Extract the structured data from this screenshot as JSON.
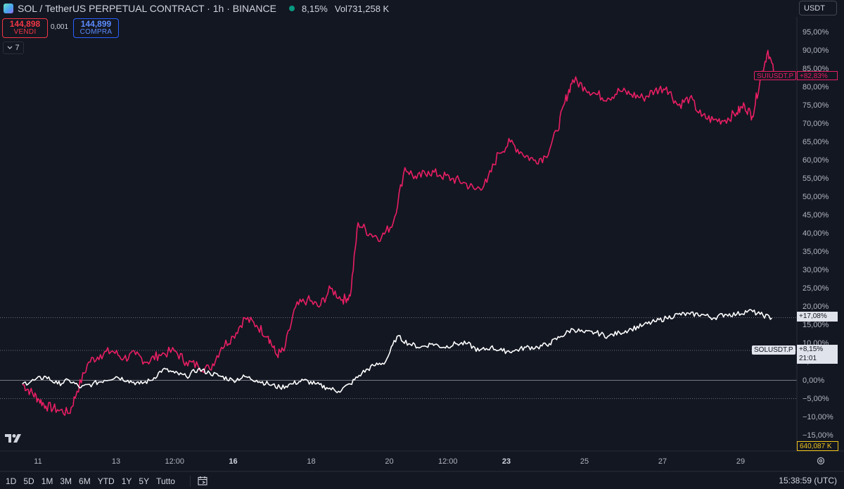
{
  "header": {
    "title": "SOL / TetherUS PERPETUAL CONTRACT · 1h · BINANCE",
    "change": "8,15%",
    "volume": "Vol731,258 K"
  },
  "trade": {
    "sell_price": "144,898",
    "sell_label": "VENDI",
    "spread": "0,001",
    "buy_price": "144,899",
    "buy_label": "COMPRA"
  },
  "indicators_toggle": "7",
  "currency": "USDT",
  "y_ticks": [
    "95,00%",
    "90,00%",
    "85,00%",
    "80,00%",
    "75,00%",
    "70,00%",
    "65,00%",
    "60,00%",
    "55,00%",
    "50,00%",
    "45,00%",
    "40,00%",
    "35,00%",
    "30,00%",
    "25,00%",
    "20,00%",
    "15,00%",
    "10,00%",
    "5,00%",
    "0,00%",
    "−5,00%",
    "−10,00%",
    "−15,00%"
  ],
  "x_ticks": [
    {
      "label": "11",
      "bold": false
    },
    {
      "label": "13",
      "bold": false
    },
    {
      "label": "12:00",
      "bold": false
    },
    {
      "label": "16",
      "bold": true
    },
    {
      "label": "18",
      "bold": false
    },
    {
      "label": "20",
      "bold": false
    },
    {
      "label": "12:00",
      "bold": false
    },
    {
      "label": "23",
      "bold": true
    },
    {
      "label": "25",
      "bold": false
    },
    {
      "label": "27",
      "bold": false
    },
    {
      "label": "29",
      "bold": false
    }
  ],
  "labels": {
    "sui_symbol": "SUIUSDT.P",
    "sui_value": "+82,83%",
    "sol_symbol": "SOLUSDT.P",
    "sol_value": "+8,15%",
    "sol_countdown": "21:01",
    "white_value": "+17,08%",
    "volume_value": "640,087 K"
  },
  "footer": {
    "ranges": [
      "1D",
      "5D",
      "1M",
      "3M",
      "6M",
      "YTD",
      "1Y",
      "5Y",
      "Tutto"
    ],
    "clock": "15:38:59 (UTC)"
  },
  "colors": {
    "background": "#131722",
    "sui_line": "#e91e63",
    "sol_line": "#ffffff"
  },
  "chart_data": {
    "type": "line",
    "y_unit": "%",
    "ylim": [
      -15,
      95
    ],
    "series": [
      {
        "name": "SUIUSDT.P",
        "color": "#e91e63",
        "x": [
          10.6,
          10.8,
          11.0,
          11.2,
          11.5,
          11.8,
          12.0,
          12.3,
          12.6,
          12.9,
          13.2,
          13.5,
          13.8,
          14.1,
          14.5,
          14.8,
          15.1,
          15.4,
          15.7,
          16.0,
          16.3,
          16.6,
          16.9,
          17.1,
          17.3,
          17.6,
          17.9,
          18.2,
          18.5,
          18.8,
          19.0,
          19.2,
          19.5,
          19.8,
          20.1,
          20.4,
          20.7,
          21.0,
          21.3,
          21.6,
          21.9,
          22.2,
          22.5,
          22.8,
          23.1,
          23.4,
          23.7,
          24.0,
          24.3,
          24.5,
          24.7,
          25.0,
          25.3,
          25.6,
          25.9,
          26.2,
          26.5,
          26.8,
          27.1,
          27.4,
          27.7,
          28.0,
          28.3,
          28.6,
          28.9,
          29.1,
          29.3,
          29.5,
          29.7,
          29.9
        ],
        "values": [
          -1,
          -3,
          -5,
          -7,
          -8,
          -9,
          -3,
          5,
          7,
          8,
          6,
          7,
          5,
          7,
          8,
          5,
          4,
          3,
          9,
          12,
          17,
          15,
          12,
          7,
          8,
          20,
          22,
          20,
          25,
          22,
          23,
          43,
          40,
          39,
          43,
          58,
          55,
          57,
          56,
          55,
          54,
          52,
          54,
          62,
          65,
          62,
          60,
          61,
          68,
          76,
          82,
          80,
          78,
          77,
          79,
          78,
          77,
          79,
          80,
          75,
          77,
          72,
          71,
          71,
          73,
          75,
          72,
          82,
          90,
          82
        ],
        "last": 82.83
      },
      {
        "name": "SOLUSDT.P",
        "color": "#ffffff",
        "x": [
          10.6,
          10.9,
          11.2,
          11.5,
          11.8,
          12.1,
          12.4,
          12.7,
          13.0,
          13.3,
          13.6,
          13.9,
          14.2,
          14.5,
          14.8,
          15.1,
          15.4,
          15.7,
          16.0,
          16.3,
          16.6,
          16.9,
          17.2,
          17.5,
          17.8,
          18.1,
          18.4,
          18.7,
          19.0,
          19.3,
          19.6,
          19.9,
          20.2,
          20.5,
          20.8,
          21.1,
          21.4,
          21.7,
          22.0,
          22.3,
          22.6,
          22.9,
          23.2,
          23.5,
          23.8,
          24.1,
          24.4,
          24.7,
          25.0,
          25.3,
          25.6,
          25.9,
          26.2,
          26.5,
          26.8,
          27.1,
          27.4,
          27.7,
          28.0,
          28.3,
          28.6,
          28.9,
          29.2,
          29.5,
          29.8
        ],
        "values": [
          -1,
          0,
          1,
          -1,
          0,
          -2,
          -1,
          0,
          1,
          0,
          -1,
          0,
          3,
          2,
          1,
          3,
          2,
          1,
          0,
          1,
          0,
          -1,
          -2,
          -1,
          0,
          -1,
          -2,
          -3,
          -1,
          2,
          4,
          5,
          12,
          10,
          9,
          10,
          9,
          10,
          10,
          8,
          9,
          8,
          8,
          9,
          9,
          10,
          12,
          14,
          13,
          13,
          12,
          13,
          14,
          15,
          16,
          17,
          18,
          18,
          18,
          17,
          18,
          18,
          19,
          18,
          17
        ],
        "last": 8.15
      }
    ],
    "reference_lines": [
      17.08,
      8.15,
      0,
      -5
    ]
  }
}
